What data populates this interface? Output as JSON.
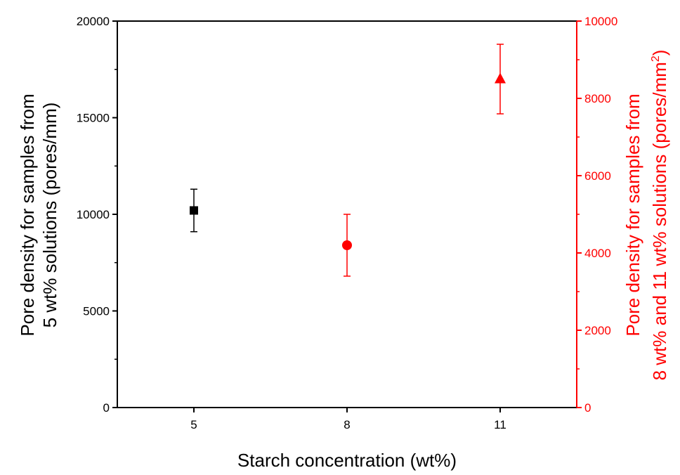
{
  "chart_data": {
    "type": "scatter",
    "xlabel": "Starch concentration (wt%)",
    "x_ticks": [
      "5",
      "8",
      "11"
    ],
    "x_positions": [
      5,
      8,
      11
    ],
    "xlim": [
      3.5,
      12.5
    ],
    "y_left": {
      "label_line1": "Pore density for samples from",
      "label_line2": "5 wt% solutions (pores/mm)",
      "ylim": [
        0,
        20000
      ],
      "ticks": [
        0,
        5000,
        10000,
        15000,
        20000
      ],
      "color": "#000000"
    },
    "y_right": {
      "label_line1": "Pore density for samples from",
      "label_line2_main": "8 wt% and 11 wt% solutions (pores/mm",
      "label_line2_sup": "2",
      "label_line2_end": ")",
      "ylim": [
        0,
        10000
      ],
      "ticks": [
        0,
        2000,
        4000,
        6000,
        8000,
        10000
      ],
      "color": "#ff0000"
    },
    "series": [
      {
        "axis": "left",
        "marker": "square",
        "color": "#000000",
        "points": [
          {
            "x": 5,
            "y": 10200,
            "err": 1100
          }
        ]
      },
      {
        "axis": "right",
        "marker": "circle",
        "color": "#ff0000",
        "points": [
          {
            "x": 8,
            "y": 4200,
            "err": 800
          }
        ]
      },
      {
        "axis": "right",
        "marker": "triangle",
        "color": "#ff0000",
        "points": [
          {
            "x": 11,
            "y": 8500,
            "err": 900
          }
        ]
      }
    ]
  }
}
